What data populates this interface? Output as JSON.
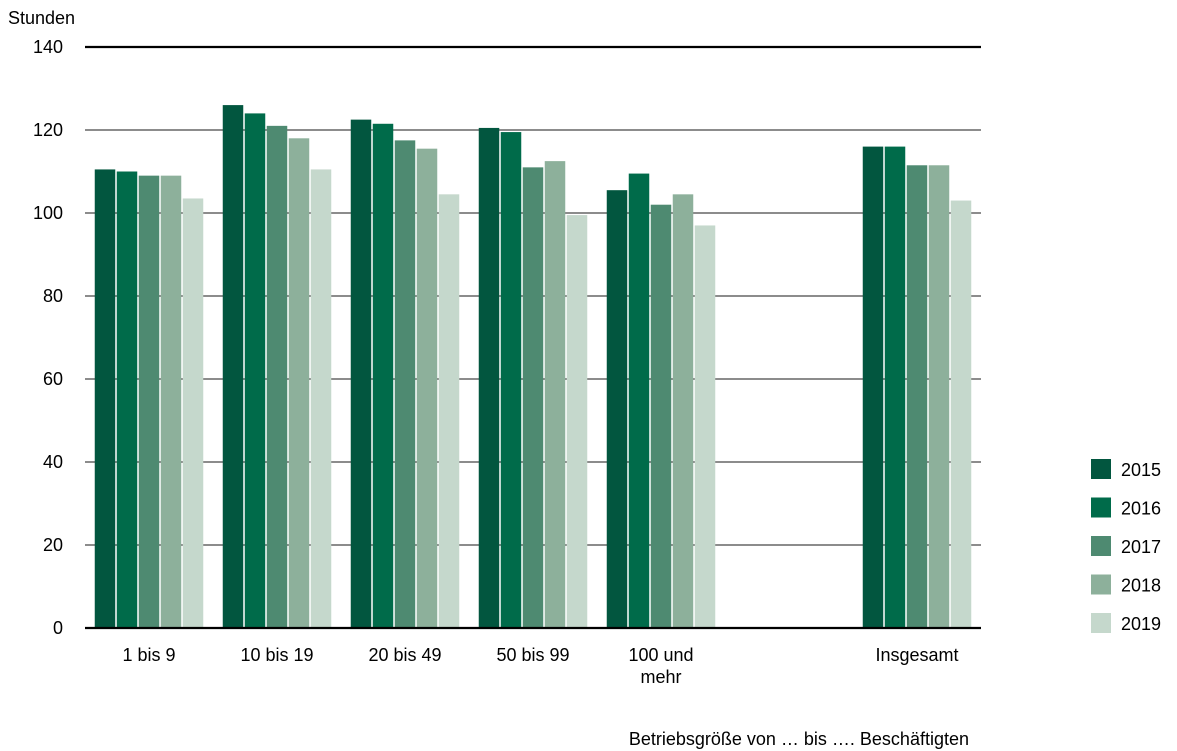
{
  "chart_data": {
    "type": "bar",
    "ylabel": "Stunden",
    "xlabel": "Betriebsgröße von … bis …. Beschäftigten",
    "ylim": [
      0,
      140
    ],
    "yticks": [
      0,
      20,
      40,
      60,
      80,
      100,
      120,
      140
    ],
    "grid": true,
    "legend_position": "right",
    "categories": [
      [
        "1 bis 9"
      ],
      [
        "10 bis 19"
      ],
      [
        "20 bis 49"
      ],
      [
        "50 bis 99"
      ],
      [
        "100 und",
        "mehr"
      ],
      [],
      [
        "Insgesamt"
      ]
    ],
    "series": [
      {
        "name": "2015",
        "color": "#02563f",
        "values": [
          110.5,
          126,
          122.5,
          120.5,
          105.5,
          null,
          116
        ]
      },
      {
        "name": "2016",
        "color": "#006b4a",
        "values": [
          110,
          124,
          121.5,
          119.5,
          109.5,
          null,
          116
        ]
      },
      {
        "name": "2017",
        "color": "#4e8a71",
        "values": [
          109,
          121,
          117.5,
          111,
          102,
          null,
          111.5
        ]
      },
      {
        "name": "2018",
        "color": "#8db09b",
        "values": [
          109,
          118,
          115.5,
          112.5,
          104.5,
          null,
          111.5
        ]
      },
      {
        "name": "2019",
        "color": "#c5d8cc",
        "values": [
          103.5,
          110.5,
          104.5,
          99.5,
          97,
          null,
          103
        ]
      }
    ]
  }
}
